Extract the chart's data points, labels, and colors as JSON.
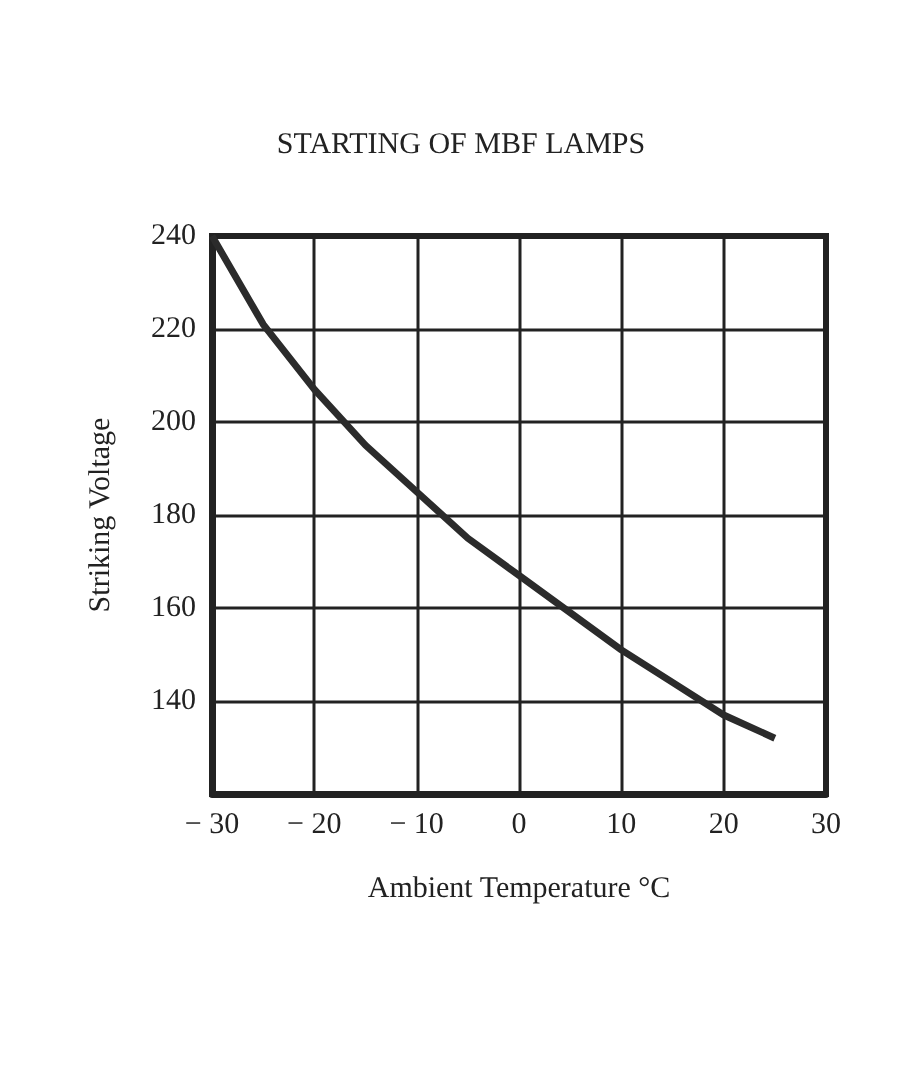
{
  "chart_data": {
    "type": "line",
    "title": "STARTING OF MBF LAMPS",
    "xlabel": "Ambient Temperature °C",
    "ylabel": "Striking Voltage",
    "x": [
      -30,
      -25,
      -20,
      -15,
      -10,
      -5,
      0,
      5,
      10,
      15,
      20,
      25
    ],
    "series": [
      {
        "color": "#2b2b2b",
        "values": [
          240,
          221,
          207,
          195,
          185,
          175,
          167,
          159,
          151,
          144,
          137,
          132
        ]
      }
    ],
    "xlim": [
      -30,
      30
    ],
    "xticks": [
      -30,
      -20,
      -10,
      0,
      10,
      20,
      30
    ],
    "ylim": [
      120,
      240
    ],
    "yticks": [
      {
        "value": 120,
        "label": null
      },
      140,
      160,
      180,
      200,
      220,
      240
    ],
    "grid": true,
    "marker": "none",
    "line_style": "solid"
  }
}
